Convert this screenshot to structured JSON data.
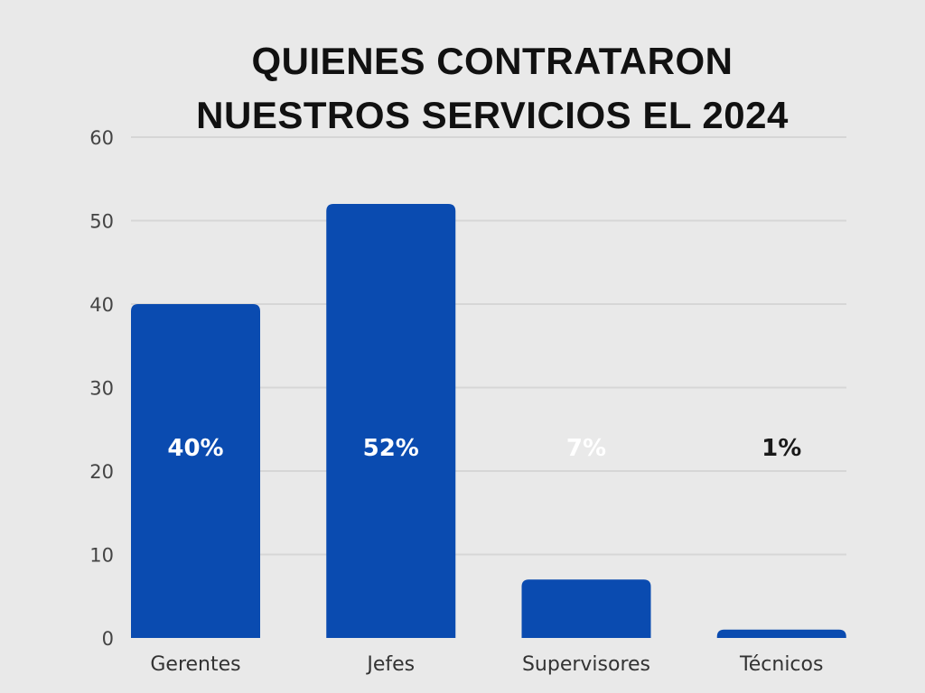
{
  "chart_data": {
    "type": "bar",
    "title_lines": [
      "QUIENES CONTRATARON",
      "NUESTROS SERVICIOS EL 2024"
    ],
    "categories": [
      "Gerentes",
      "Jefes",
      "Supervisores",
      "Técnicos"
    ],
    "values": [
      40,
      52,
      7,
      1
    ],
    "data_labels": [
      "40%",
      "52%",
      "7%",
      "1%"
    ],
    "yticks": [
      0,
      10,
      20,
      30,
      40,
      50,
      60
    ],
    "ylim": [
      0,
      60
    ],
    "grid": true,
    "xlabel": "",
    "ylabel": "",
    "colors": {
      "bar": "#0a4bb0",
      "background": "#e9e9e9",
      "grid": "#d6d6d6",
      "label_inside": "#ffffff",
      "label_outside": "#1a1a1a"
    }
  }
}
